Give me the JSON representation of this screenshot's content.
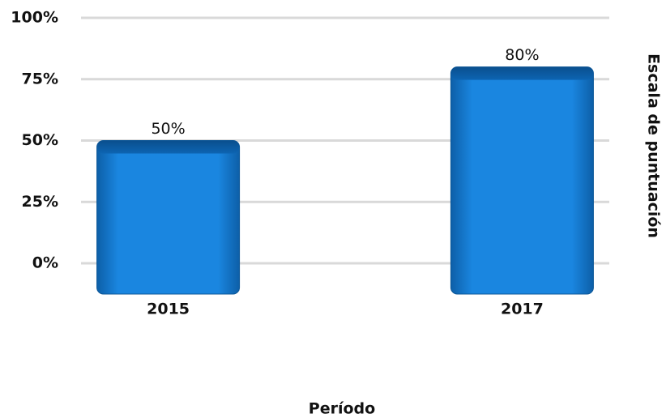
{
  "chart_data": {
    "type": "bar",
    "categories": [
      "2015",
      "2017"
    ],
    "values": [
      50,
      80
    ],
    "value_labels": [
      "50%",
      "80%"
    ],
    "color": "#1a86e0",
    "xlabel": "Período",
    "ylabel": "Escala de puntuación",
    "ylim": [
      0,
      100
    ],
    "yticks": [
      {
        "value": 0,
        "label": "0%"
      },
      {
        "value": 25,
        "label": "25%"
      },
      {
        "value": 50,
        "label": "50%"
      },
      {
        "value": 75,
        "label": "75%"
      },
      {
        "value": 100,
        "label": "100%"
      }
    ],
    "grid": true
  }
}
